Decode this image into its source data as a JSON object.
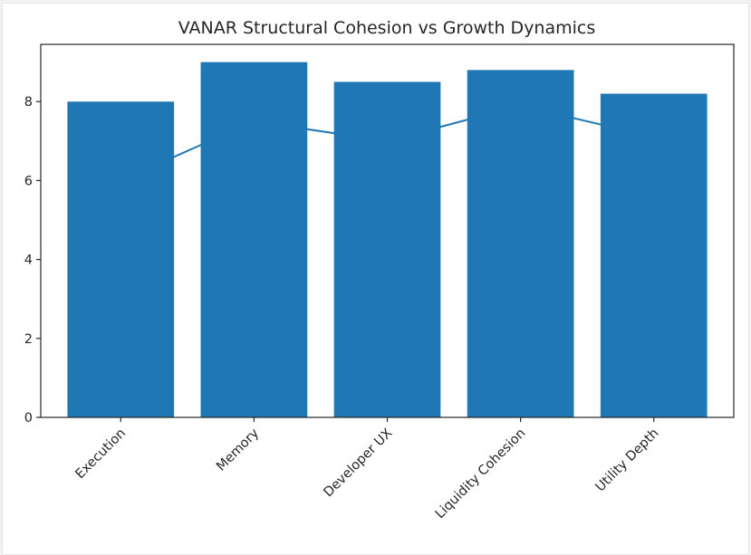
{
  "chart_data": {
    "type": "bar",
    "title": "VANAR Structural Cohesion vs Growth Dynamics",
    "xlabel": "",
    "ylabel": "",
    "categories": [
      "Execution",
      "Memory",
      "Developer UX",
      "Liquidity Cohesion",
      "Utility Depth"
    ],
    "series": [
      {
        "name": "Structural Cohesion",
        "kind": "bar",
        "color": "#1f77b4",
        "values": [
          8.0,
          9.0,
          8.5,
          8.8,
          8.2
        ]
      },
      {
        "name": "Growth Dynamics",
        "kind": "line",
        "color": "#1f77b4",
        "values": [
          6.0,
          7.5,
          7.0,
          7.9,
          7.1
        ]
      }
    ],
    "ylim": [
      0,
      9.45
    ],
    "yticks": [
      0,
      2,
      4,
      6,
      8
    ],
    "xtick_rotation": 45,
    "grid": false,
    "legend": "none"
  }
}
